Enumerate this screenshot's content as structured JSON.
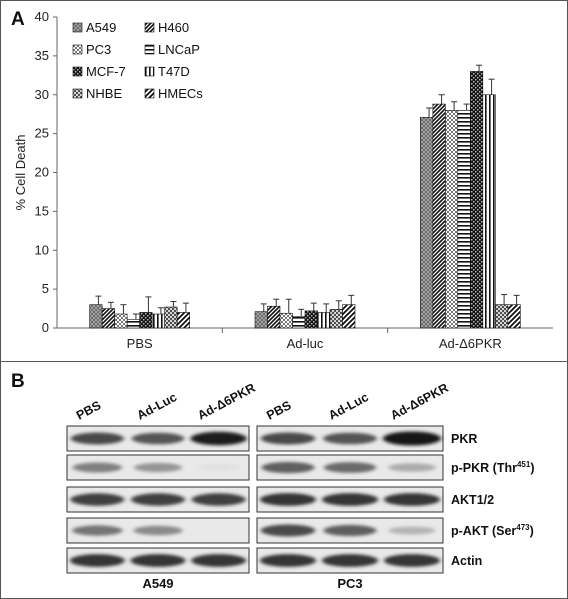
{
  "panel_a_label": "A",
  "panel_b_label": "B",
  "chart_data": {
    "type": "bar",
    "categories": [
      "PBS",
      "Ad-luc",
      "Ad-Δ6PKR"
    ],
    "ylabel": "% Cell Death",
    "xlabel": "",
    "ylim": [
      0,
      40
    ],
    "yticks": [
      0,
      5,
      10,
      15,
      20,
      25,
      30,
      35,
      40
    ],
    "legend_position": "top-left",
    "grid": false,
    "series": [
      {
        "name": "A549",
        "values": [
          3.0,
          2.1,
          27.1
        ],
        "errors": [
          1.1,
          1.0,
          1.2
        ],
        "fill": "#6e6e6e",
        "pattern": "dots"
      },
      {
        "name": "H460",
        "values": [
          2.5,
          2.8,
          28.8
        ],
        "errors": [
          0.8,
          0.9,
          1.2
        ],
        "fill": "#ffffff",
        "pattern": "diag"
      },
      {
        "name": "PC3",
        "values": [
          1.8,
          1.9,
          28.0
        ],
        "errors": [
          1.2,
          1.8,
          1.1
        ],
        "fill": "#ffffff",
        "pattern": "check"
      },
      {
        "name": "LNCaP",
        "values": [
          1.1,
          1.5,
          28.0
        ],
        "errors": [
          0.7,
          0.9,
          0.8
        ],
        "fill": "#ffffff",
        "pattern": "hstripe"
      },
      {
        "name": "MCF-7",
        "values": [
          2.0,
          2.2,
          33.0
        ],
        "errors": [
          2.0,
          1.0,
          0.8
        ],
        "fill": "#222222",
        "pattern": "checkdark"
      },
      {
        "name": "T47D",
        "values": [
          1.8,
          2.0,
          30.0
        ],
        "errors": [
          0.8,
          1.1,
          2.0
        ],
        "fill": "#ffffff",
        "pattern": "vstripe"
      },
      {
        "name": "NHBE",
        "values": [
          2.7,
          2.4,
          3.0
        ],
        "errors": [
          0.7,
          1.1,
          1.3
        ],
        "fill": "#ffffff",
        "pattern": "diagcross"
      },
      {
        "name": "HMECs",
        "values": [
          2.0,
          3.0,
          3.0
        ],
        "errors": [
          1.2,
          1.2,
          1.2
        ],
        "fill": "#ffffff",
        "pattern": "diag2"
      }
    ]
  },
  "blot": {
    "lanes": [
      "PBS",
      "Ad-Luc",
      "Ad-Δ6PKR"
    ],
    "cell_lines": [
      "A549",
      "PC3"
    ],
    "rows": [
      {
        "label": "PKR"
      },
      {
        "label": "p-PKR (Thr",
        "sup": "451",
        "tail": ")"
      },
      {
        "label": "AKT1/2"
      },
      {
        "label": "p-AKT (Ser",
        "sup": "473",
        "tail": ")"
      },
      {
        "label": "Actin"
      }
    ],
    "band_intensity": {
      "A549": [
        [
          0.75,
          0.7,
          0.95
        ],
        [
          0.5,
          0.4,
          0.05
        ],
        [
          0.8,
          0.8,
          0.8
        ],
        [
          0.55,
          0.45,
          0.0
        ],
        [
          0.85,
          0.85,
          0.85
        ]
      ],
      "PC3": [
        [
          0.75,
          0.7,
          1.0
        ],
        [
          0.65,
          0.6,
          0.3
        ],
        [
          0.85,
          0.85,
          0.85
        ],
        [
          0.75,
          0.65,
          0.25
        ],
        [
          0.85,
          0.85,
          0.85
        ]
      ]
    }
  }
}
